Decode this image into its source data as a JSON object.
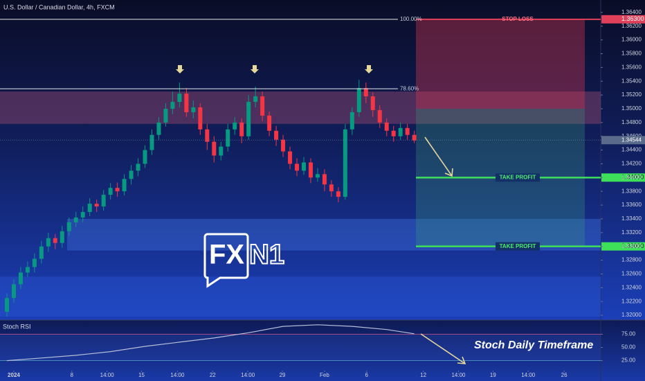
{
  "chart_data": [
    {
      "type": "candlestick",
      "title": "U.S. Dollar / Canadian Dollar, 4h, FXCM",
      "open": [
        1.3205,
        1.3225,
        1.3245,
        1.3262,
        1.327,
        1.3282,
        1.33,
        1.3312,
        1.3305,
        1.3322,
        1.3335,
        1.3342,
        1.335,
        1.3362,
        1.3358,
        1.3375,
        1.3385,
        1.338,
        1.3398,
        1.341,
        1.342,
        1.344,
        1.3462,
        1.348,
        1.35,
        1.351,
        1.3522,
        1.3495,
        1.3502,
        1.347,
        1.3452,
        1.3432,
        1.3445,
        1.347,
        1.348,
        1.346,
        1.351,
        1.3518,
        1.349,
        1.3468,
        1.3455,
        1.3438,
        1.342,
        1.341,
        1.3422,
        1.34,
        1.3405,
        1.339,
        1.338,
        1.3372,
        1.347,
        1.3495,
        1.353,
        1.3518,
        1.3498,
        1.348,
        1.3468,
        1.346,
        1.3472,
        1.3462
      ],
      "high": [
        1.3232,
        1.3252,
        1.327,
        1.3278,
        1.329,
        1.3308,
        1.332,
        1.3318,
        1.333,
        1.3342,
        1.335,
        1.3358,
        1.337,
        1.3368,
        1.3382,
        1.3392,
        1.3393,
        1.3405,
        1.3418,
        1.3428,
        1.3447,
        1.347,
        1.3488,
        1.3508,
        1.3525,
        1.3538,
        1.353,
        1.3512,
        1.3508,
        1.3478,
        1.346,
        1.3452,
        1.3478,
        1.3488,
        1.3486,
        1.352,
        1.3532,
        1.3525,
        1.3496,
        1.3475,
        1.3462,
        1.3445,
        1.3428,
        1.343,
        1.3428,
        1.3414,
        1.3412,
        1.3396,
        1.3386,
        1.3478,
        1.3502,
        1.3542,
        1.3538,
        1.3524,
        1.3505,
        1.3486,
        1.3475,
        1.348,
        1.3478,
        1.3468
      ],
      "low": [
        1.3198,
        1.3218,
        1.3238,
        1.3255,
        1.3262,
        1.3275,
        1.3292,
        1.3296,
        1.3298,
        1.3315,
        1.3328,
        1.3335,
        1.3344,
        1.335,
        1.3352,
        1.3368,
        1.3372,
        1.3374,
        1.339,
        1.3402,
        1.3414,
        1.3433,
        1.3455,
        1.3474,
        1.3492,
        1.3502,
        1.3488,
        1.3486,
        1.3462,
        1.344,
        1.3422,
        1.3425,
        1.3438,
        1.3462,
        1.345,
        1.3455,
        1.3502,
        1.3482,
        1.346,
        1.3446,
        1.343,
        1.3412,
        1.3402,
        1.3404,
        1.3392,
        1.3394,
        1.338,
        1.3372,
        1.3364,
        1.3368,
        1.3462,
        1.3488,
        1.3508,
        1.3488,
        1.3472,
        1.346,
        1.3452,
        1.3455,
        1.3455,
        1.345
      ],
      "close": [
        1.3225,
        1.3245,
        1.3262,
        1.327,
        1.3282,
        1.33,
        1.3312,
        1.3305,
        1.3322,
        1.3335,
        1.3342,
        1.335,
        1.3362,
        1.3358,
        1.3375,
        1.3385,
        1.338,
        1.3398,
        1.341,
        1.342,
        1.344,
        1.3462,
        1.348,
        1.35,
        1.351,
        1.3522,
        1.3495,
        1.3502,
        1.347,
        1.3452,
        1.3432,
        1.3445,
        1.347,
        1.348,
        1.346,
        1.351,
        1.3518,
        1.349,
        1.3468,
        1.3455,
        1.3438,
        1.342,
        1.341,
        1.3422,
        1.34,
        1.3405,
        1.339,
        1.338,
        1.3372,
        1.347,
        1.3495,
        1.353,
        1.3518,
        1.3498,
        1.348,
        1.3468,
        1.346,
        1.3472,
        1.3462,
        1.3454
      ],
      "up_color": "#089981",
      "down_color": "#f23645",
      "xlim": [
        -1,
        86
      ],
      "ylim": [
        1.3195,
        1.3658
      ],
      "yticks": [
        {
          "value": 1.32,
          "label": "1.32000"
        },
        {
          "value": 1.322,
          "label": "1.32200"
        },
        {
          "value": 1.324,
          "label": "1.32400"
        },
        {
          "value": 1.326,
          "label": "1.32600"
        },
        {
          "value": 1.328,
          "label": "1.32800"
        },
        {
          "value": 1.33,
          "label": "1.33000"
        },
        {
          "value": 1.332,
          "label": "1.33200"
        },
        {
          "value": 1.334,
          "label": "1.33400"
        },
        {
          "value": 1.336,
          "label": "1.33600"
        },
        {
          "value": 1.338,
          "label": "1.33800"
        },
        {
          "value": 1.34,
          "label": "1.34000"
        },
        {
          "value": 1.342,
          "label": "1.34200"
        },
        {
          "value": 1.344,
          "label": "1.34400"
        },
        {
          "value": 1.346,
          "label": "1.34600"
        },
        {
          "value": 1.348,
          "label": "1.34800"
        },
        {
          "value": 1.35,
          "label": "1.35000"
        },
        {
          "value": 1.352,
          "label": "1.35200"
        },
        {
          "value": 1.354,
          "label": "1.35400"
        },
        {
          "value": 1.356,
          "label": "1.35600"
        },
        {
          "value": 1.358,
          "label": "1.35800"
        },
        {
          "value": 1.36,
          "label": "1.36000"
        },
        {
          "value": 1.362,
          "label": "1.36200"
        },
        {
          "value": 1.364,
          "label": "1.36400"
        }
      ],
      "levels": [
        {
          "value": 1.363,
          "label": "100.00%"
        },
        {
          "value": 1.3529,
          "label": "78.60%"
        }
      ],
      "zones": [
        {
          "from": 1.3478,
          "to": 1.3525,
          "color": "#9a4a6e"
        },
        {
          "from": 1.3294,
          "to": 1.334,
          "color": "#3a6ad8"
        },
        {
          "from": 1.3198,
          "to": 1.3256,
          "color": "#2a55d0"
        }
      ],
      "trade": {
        "stop_loss": {
          "value": 1.363,
          "label": "STOP LOSS",
          "price_label": "1.36300"
        },
        "entry": 1.35,
        "take_profits": [
          {
            "value": 1.34,
            "label": "TAKE PROFIT",
            "price_label": "1.34000"
          },
          {
            "value": 1.33,
            "label": "TAKE PROFIT",
            "price_label": "1.33000"
          }
        ]
      },
      "last_price": {
        "value": 1.34544,
        "label": "1.34544"
      },
      "logo": {
        "text1": "FX",
        "text2": "N1"
      }
    },
    {
      "type": "line",
      "title": "Stoch RSI",
      "x": [
        0,
        5,
        10,
        15,
        20,
        25,
        30,
        35,
        40,
        45,
        50,
        55,
        59
      ],
      "values": [
        25,
        30,
        35,
        42,
        52,
        60,
        68,
        78,
        90,
        93,
        90,
        84,
        76
      ],
      "color": "#b8c0d8",
      "xlim": [
        -1,
        86
      ],
      "ylim": [
        6,
        102
      ],
      "xticks": [
        {
          "value": 1,
          "label": "2024"
        },
        {
          "value": 9.4,
          "label": "8"
        },
        {
          "value": 14.5,
          "label": "14:00"
        },
        {
          "value": 19.5,
          "label": "15"
        },
        {
          "value": 24.7,
          "label": "14:00"
        },
        {
          "value": 29.8,
          "label": "22"
        },
        {
          "value": 34.9,
          "label": "14:00"
        },
        {
          "value": 39.9,
          "label": "29"
        },
        {
          "value": 46,
          "label": "Feb"
        },
        {
          "value": 52.1,
          "label": "6"
        },
        {
          "value": 60.3,
          "label": "12"
        },
        {
          "value": 65.4,
          "label": "14:00"
        },
        {
          "value": 70.4,
          "label": "19"
        },
        {
          "value": 75.5,
          "label": "14:00"
        },
        {
          "value": 80.7,
          "label": "26"
        }
      ],
      "yticks": [
        {
          "value": 25,
          "label": "25.00"
        },
        {
          "value": 50,
          "label": "50.00"
        },
        {
          "value": 75,
          "label": "75.00"
        }
      ],
      "bands": [
        25,
        75
      ],
      "annotation": "Stoch Daily Timeframe"
    }
  ]
}
